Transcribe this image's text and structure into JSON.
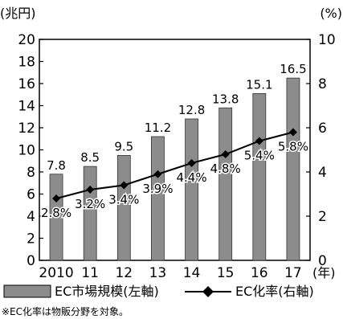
{
  "chart_data": {
    "type": "bar",
    "categories": [
      "2010",
      "11",
      "12",
      "13",
      "14",
      "15",
      "16",
      "17"
    ],
    "x_suffix": "(年)",
    "series": [
      {
        "name": "EC市場規模(左軸)",
        "type": "bar",
        "axis": "left",
        "values": [
          7.8,
          8.5,
          9.5,
          11.2,
          12.8,
          13.8,
          15.1,
          16.5
        ],
        "labels": [
          "7.8",
          "8.5",
          "9.5",
          "11.2",
          "12.8",
          "13.8",
          "15.1",
          "16.5"
        ],
        "color": "#8c8c8c"
      },
      {
        "name": "EC化率(右軸)",
        "type": "line",
        "axis": "right",
        "values": [
          2.8,
          3.2,
          3.4,
          3.9,
          4.4,
          4.8,
          5.4,
          5.8
        ],
        "labels": [
          "2.8%",
          "3.2%",
          "3.4%",
          "3.9%",
          "4.4%",
          "4.8%",
          "5.4%",
          "5.8%"
        ],
        "color": "#000000",
        "marker": "diamond"
      }
    ],
    "left_axis": {
      "unit": "(兆円)",
      "ylim": [
        0,
        20
      ],
      "ticks": [
        "0",
        "2",
        "4",
        "6",
        "8",
        "10",
        "12",
        "14",
        "16",
        "18",
        "20"
      ]
    },
    "right_axis": {
      "unit": "(%)",
      "ylim": [
        0,
        10
      ],
      "ticks": [
        "0",
        "2",
        "4",
        "6",
        "8",
        "10"
      ]
    },
    "grid": false,
    "legend_position": "bottom",
    "note": "※EC化率は物販分野を対象。"
  }
}
